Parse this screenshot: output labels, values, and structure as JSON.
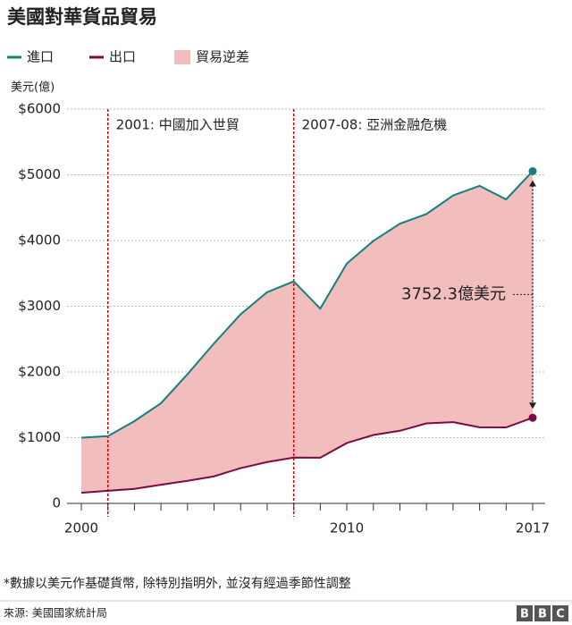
{
  "chart_data": {
    "type": "area-line",
    "title": "美國對華貨品貿易",
    "y_label": "美元(億)",
    "x": [
      2000,
      2001,
      2002,
      2003,
      2004,
      2005,
      2006,
      2007,
      2008,
      2009,
      2010,
      2011,
      2012,
      2013,
      2014,
      2015,
      2016,
      2017
    ],
    "series": [
      {
        "name": "進口",
        "color": "#13807e",
        "values": [
          1000,
          1023,
          1252,
          1524,
          1967,
          2435,
          2878,
          3214,
          3378,
          2964,
          3650,
          3994,
          4256,
          4404,
          4685,
          4832,
          4626,
          5055
        ]
      },
      {
        "name": "出口",
        "color": "#7c0a43",
        "values": [
          162,
          192,
          221,
          284,
          344,
          412,
          537,
          629,
          697,
          695,
          919,
          1041,
          1105,
          1217,
          1237,
          1159,
          1156,
          1303
        ]
      }
    ],
    "area": {
      "name": "貿易逆差",
      "color": "#f2bdbd"
    },
    "xlim": [
      2000,
      2017
    ],
    "xticks": [
      2000,
      2010,
      2017
    ],
    "ylim": [
      0,
      6000
    ],
    "yticks": [
      0,
      {
        "value": 1000,
        "label": "$1000"
      },
      {
        "value": 2000,
        "label": "$2000"
      },
      {
        "value": 3000,
        "label": "$3000"
      },
      {
        "value": 4000,
        "label": "$4000"
      },
      {
        "value": 5000,
        "label": "$5000"
      },
      {
        "value": 6000,
        "label": "$6000"
      }
    ],
    "grid": true,
    "annotations": [
      {
        "x": 2001,
        "label": "2001: 中國加入世貿"
      },
      {
        "x": 2008,
        "label": "2007-08: 亞洲金融危機"
      }
    ],
    "gap_label": "3752.3億美元"
  },
  "footnote": "*數據以美元作基礎貨幣, 除特別指明外, 並沒有經過季節性調整",
  "source": "來源: 美國國家統計局",
  "logo": [
    "B",
    "B",
    "C"
  ]
}
